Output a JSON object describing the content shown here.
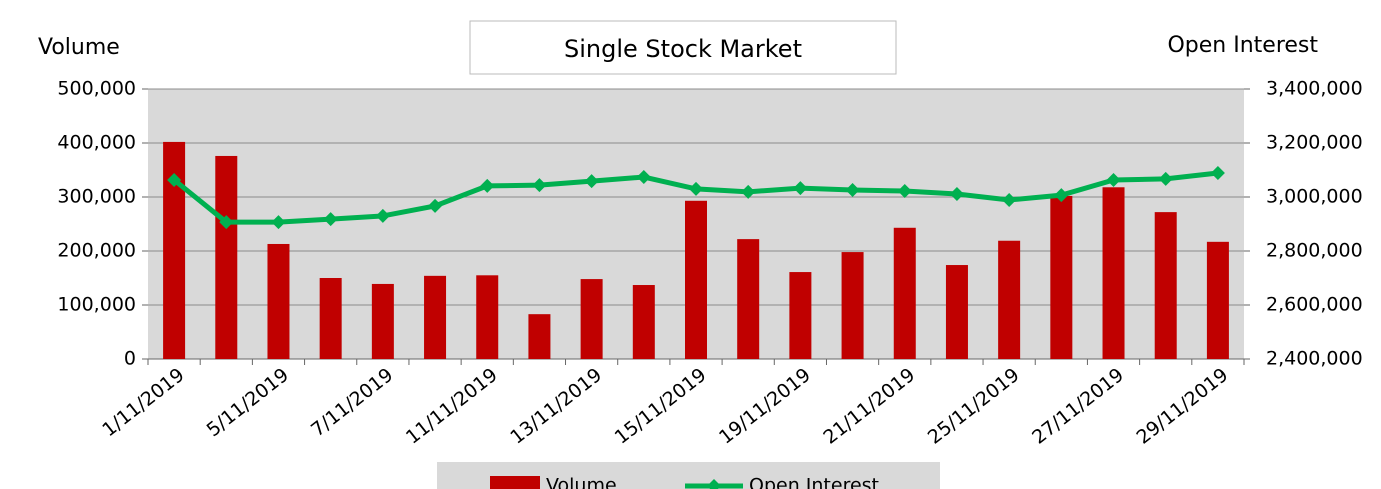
{
  "chart_data": {
    "type": "bar_line",
    "title": "Single Stock Market",
    "y_label": "Volume",
    "y2_label": "Open Interest",
    "categories": [
      "1/11/2019",
      null,
      "5/11/2019",
      null,
      "7/11/2019",
      null,
      "11/11/2019",
      null,
      "13/11/2019",
      null,
      "15/11/2019",
      null,
      "19/11/2019",
      null,
      "21/11/2019",
      null,
      "25/11/2019",
      null,
      "27/11/2019",
      null,
      "29/11/2019"
    ],
    "series": [
      {
        "name": "Volume",
        "type": "bar",
        "color": "#c00000",
        "values": [
          402000,
          376000,
          213000,
          150000,
          139000,
          154000,
          155000,
          83000,
          148000,
          137000,
          293000,
          222000,
          161000,
          198000,
          243000,
          174000,
          219000,
          302000,
          318000,
          272000,
          217000
        ]
      },
      {
        "name": "Open Interest",
        "type": "line",
        "axis": "y2",
        "color": "#00b050",
        "values": [
          3063000,
          2907000,
          2907000,
          2918000,
          2930000,
          2967000,
          3041000,
          3044000,
          3059000,
          3074000,
          3030000,
          3019000,
          3033000,
          3026000,
          3022000,
          3011000,
          2989000,
          3007000,
          3063000,
          3067000,
          3089000
        ]
      }
    ],
    "ylim": [
      0,
      500000
    ],
    "yticks": [
      0,
      {
        "value": 100000,
        "label": "100,000"
      },
      {
        "value": 200000,
        "label": "200,000"
      },
      {
        "value": 300000,
        "label": "300,000"
      },
      {
        "value": 400000,
        "label": "400,000"
      },
      {
        "value": 500000,
        "label": "500,000"
      }
    ],
    "y2lim": [
      2400000,
      3400000
    ],
    "y2ticks": [
      {
        "value": 2400000,
        "label": "2,400,000"
      },
      {
        "value": 2600000,
        "label": "2,600,000"
      },
      {
        "value": 2800000,
        "label": "2,800,000"
      },
      {
        "value": 3000000,
        "label": "3,000,000"
      },
      {
        "value": 3200000,
        "label": "3,200,000"
      },
      {
        "value": 3400000,
        "label": "3,400,000"
      }
    ],
    "grid": true,
    "legend": "bottom"
  }
}
